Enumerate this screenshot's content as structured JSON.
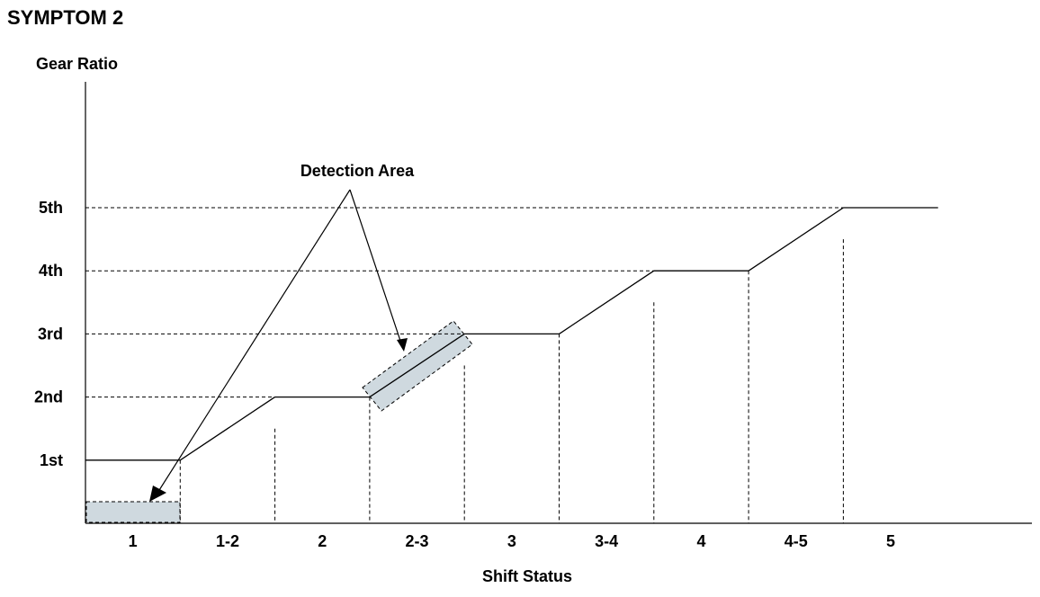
{
  "title": "SYMPTOM 2",
  "y_axis_label": "Gear Ratio",
  "x_axis_label": "Shift Status",
  "annotation": "Detection Area",
  "gears": [
    "1st",
    "2nd",
    "3rd",
    "4th",
    "5th"
  ],
  "shift_states": [
    "1",
    "1-2",
    "2",
    "2-3",
    "3",
    "3-4",
    "4",
    "4-5",
    "5"
  ],
  "gear_level_by_state": [
    1,
    1.5,
    2,
    2.5,
    3,
    3.5,
    4,
    4.5,
    5
  ],
  "detection_areas": [
    "1",
    "2-3"
  ],
  "colors": {
    "line": "#000000",
    "highlight": "#cfd9df"
  }
}
